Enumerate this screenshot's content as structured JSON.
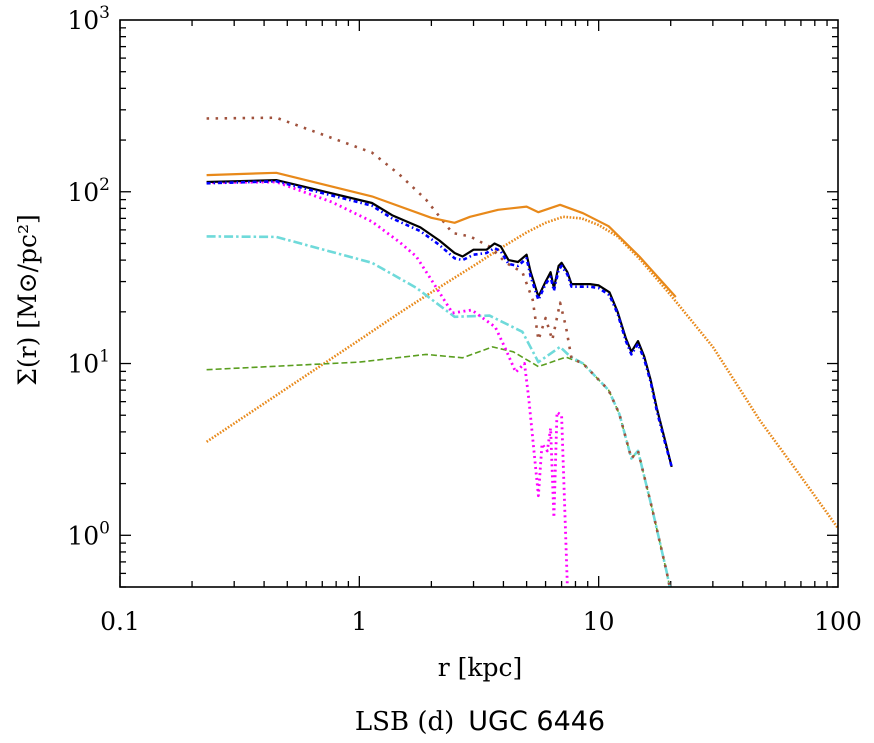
{
  "chart_data": {
    "type": "line",
    "xscale": "log",
    "yscale": "log",
    "xlim": [
      0.1,
      100
    ],
    "ylim": [
      0.5,
      1000
    ],
    "xlabel": "r [kpc]",
    "ylabel": "Σ(r) [M⊙/pc²]",
    "x_ticks": [
      "0.1",
      "1",
      "10",
      "100"
    ],
    "y_ticks": [
      {
        "base": "10",
        "exp": "0"
      },
      {
        "base": "10",
        "exp": "1"
      },
      {
        "base": "10",
        "exp": "2"
      },
      {
        "base": "10",
        "exp": "3"
      }
    ],
    "caption": {
      "left": "LSB (d)",
      "right": "UGC 6446"
    },
    "grid": false,
    "series": [
      {
        "color": "#e8891a",
        "style": "dotted",
        "points": [
          [
            0.23,
            3.5
          ],
          [
            0.5,
            7.2
          ],
          [
            1,
            13.7
          ],
          [
            1.47,
            19.7
          ],
          [
            2,
            26
          ],
          [
            3,
            37
          ],
          [
            4,
            48
          ],
          [
            5,
            58
          ],
          [
            6,
            66
          ],
          [
            7.1,
            71.5
          ],
          [
            8.5,
            70
          ],
          [
            10,
            64
          ],
          [
            12,
            55
          ],
          [
            15,
            40
          ],
          [
            20,
            25
          ],
          [
            30,
            12.5
          ],
          [
            47,
            4.7
          ],
          [
            70,
            2.2
          ],
          [
            100,
            1.1
          ]
        ]
      },
      {
        "color": "#5a9e1f",
        "style": "dashed",
        "points": [
          [
            0.23,
            9.2
          ],
          [
            1.0,
            10.2
          ],
          [
            1.9,
            11.3
          ],
          [
            2.7,
            10.8
          ],
          [
            3.6,
            12.5
          ],
          [
            4.4,
            11.7
          ],
          [
            5.6,
            9.6
          ],
          [
            7.3,
            10.9
          ],
          [
            8.6,
            10
          ],
          [
            11,
            7
          ],
          [
            12.2,
            5.1
          ],
          [
            13.7,
            2.8
          ],
          [
            14.6,
            3.1
          ],
          [
            16.7,
            1.44
          ],
          [
            19.3,
            0.6
          ],
          [
            19.8,
            0.5
          ]
        ]
      },
      {
        "color": "#6fdada",
        "style": "dashdot",
        "points": [
          [
            0.23,
            55
          ],
          [
            0.45,
            54.6
          ],
          [
            1.13,
            38.6
          ],
          [
            1.73,
            27.6
          ],
          [
            2.5,
            18.7
          ],
          [
            3.5,
            19
          ],
          [
            4.8,
            15.3
          ],
          [
            5.6,
            10.2
          ],
          [
            6.9,
            12.5
          ],
          [
            7.6,
            11
          ],
          [
            8.6,
            10
          ],
          [
            11,
            7
          ],
          [
            12.2,
            5.1
          ],
          [
            13.7,
            2.8
          ],
          [
            14.6,
            3.1
          ],
          [
            16.7,
            1.44
          ],
          [
            19.3,
            0.6
          ],
          [
            19.8,
            0.5
          ]
        ]
      },
      {
        "color": "#a0523d",
        "style": "sparse-dotted",
        "points": [
          [
            0.23,
            267
          ],
          [
            0.45,
            270
          ],
          [
            1.13,
            169
          ],
          [
            1.47,
            126
          ],
          [
            1.9,
            90
          ],
          [
            2.45,
            57.5
          ],
          [
            2.9,
            55
          ],
          [
            3.5,
            48
          ],
          [
            4.1,
            38.6
          ],
          [
            4.8,
            34
          ],
          [
            5.3,
            23.5
          ],
          [
            5.6,
            13.7
          ],
          [
            6.0,
            18.4
          ],
          [
            6.4,
            13.7
          ],
          [
            6.9,
            22.6
          ],
          [
            7.3,
            16.3
          ],
          [
            7.7,
            10.7
          ],
          [
            8.6,
            10
          ],
          [
            11,
            7
          ],
          [
            12.2,
            5.1
          ],
          [
            13.7,
            2.8
          ],
          [
            14.6,
            3.1
          ],
          [
            16.7,
            1.44
          ],
          [
            19.3,
            0.6
          ],
          [
            19.8,
            0.5
          ]
        ]
      },
      {
        "color": "#ff00ff",
        "style": "dotted",
        "points": [
          [
            0.23,
            113
          ],
          [
            0.45,
            114
          ],
          [
            0.77,
            87
          ],
          [
            1.13,
            67
          ],
          [
            1.47,
            51
          ],
          [
            1.73,
            42
          ],
          [
            2.0,
            30.7
          ],
          [
            2.45,
            19.7
          ],
          [
            2.95,
            20.5
          ],
          [
            3.7,
            16.3
          ],
          [
            4.1,
            12
          ],
          [
            4.5,
            8.9
          ],
          [
            4.9,
            10
          ],
          [
            5.1,
            6.3
          ],
          [
            5.6,
            1.7
          ],
          [
            5.8,
            3.4
          ],
          [
            6.1,
            3.1
          ],
          [
            6.3,
            4.2
          ],
          [
            6.5,
            1.27
          ],
          [
            6.7,
            5.2
          ],
          [
            7.0,
            5.0
          ],
          [
            7.4,
            0.5
          ]
        ]
      },
      {
        "color": "#e8891a",
        "style": "solid",
        "points": [
          [
            0.23,
            125
          ],
          [
            0.45,
            129
          ],
          [
            1.13,
            94
          ],
          [
            2.0,
            70.5
          ],
          [
            2.5,
            66
          ],
          [
            2.9,
            71.5
          ],
          [
            3.8,
            78.5
          ],
          [
            5.0,
            82
          ],
          [
            5.6,
            76
          ],
          [
            6.9,
            84
          ],
          [
            8.6,
            75
          ],
          [
            11,
            63
          ],
          [
            14.8,
            42
          ],
          [
            21,
            24.4
          ]
        ]
      },
      {
        "color": "#000000",
        "style": "solid",
        "points": [
          [
            0.23,
            114
          ],
          [
            0.45,
            117
          ],
          [
            1.13,
            86
          ],
          [
            1.37,
            73
          ],
          [
            1.8,
            62
          ],
          [
            2.16,
            52
          ],
          [
            2.5,
            44
          ],
          [
            2.7,
            42
          ],
          [
            3.0,
            46
          ],
          [
            3.4,
            46
          ],
          [
            3.67,
            50
          ],
          [
            3.9,
            48
          ],
          [
            4.2,
            40
          ],
          [
            4.6,
            39
          ],
          [
            5.0,
            43
          ],
          [
            5.2,
            34
          ],
          [
            5.6,
            24.5
          ],
          [
            6.0,
            30
          ],
          [
            6.3,
            34
          ],
          [
            6.5,
            27.5
          ],
          [
            6.8,
            37
          ],
          [
            7.0,
            38.6
          ],
          [
            7.4,
            34
          ],
          [
            7.7,
            29
          ],
          [
            9.2,
            29
          ],
          [
            10,
            28.5
          ],
          [
            11.1,
            26
          ],
          [
            12,
            20
          ],
          [
            13.0,
            14
          ],
          [
            13.7,
            11.7
          ],
          [
            14.6,
            13.5
          ],
          [
            15.5,
            11
          ],
          [
            16.5,
            8
          ],
          [
            17.5,
            5.5
          ],
          [
            19,
            3.5
          ],
          [
            20.2,
            2.5
          ]
        ]
      },
      {
        "color": "#0000ff",
        "style": "dashdotted-fine",
        "points": [
          [
            0.23,
            112
          ],
          [
            0.45,
            115
          ],
          [
            1.13,
            83
          ],
          [
            1.37,
            70
          ],
          [
            1.8,
            59
          ],
          [
            2.16,
            49
          ],
          [
            2.5,
            41
          ],
          [
            2.7,
            40
          ],
          [
            3.0,
            43
          ],
          [
            3.4,
            44
          ],
          [
            3.67,
            47
          ],
          [
            3.9,
            45
          ],
          [
            4.2,
            38
          ],
          [
            4.6,
            37
          ],
          [
            5.0,
            41
          ],
          [
            5.2,
            32
          ],
          [
            5.6,
            23.5
          ],
          [
            6.0,
            29
          ],
          [
            6.3,
            32
          ],
          [
            6.5,
            26.5
          ],
          [
            6.8,
            35
          ],
          [
            7.0,
            37
          ],
          [
            7.4,
            33
          ],
          [
            7.7,
            28
          ],
          [
            9.2,
            28
          ],
          [
            10,
            27.5
          ],
          [
            11.1,
            25
          ],
          [
            12,
            19.5
          ],
          [
            13.0,
            13.5
          ],
          [
            13.7,
            11.3
          ],
          [
            14.6,
            13
          ],
          [
            15.5,
            10.6
          ],
          [
            16.5,
            7.8
          ],
          [
            17.5,
            5.3
          ],
          [
            19,
            3.4
          ],
          [
            20.2,
            2.5
          ]
        ]
      }
    ]
  }
}
